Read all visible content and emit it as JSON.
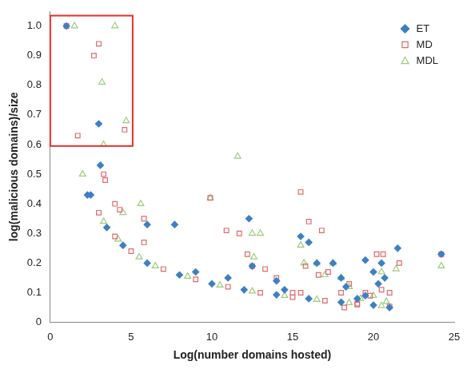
{
  "chart_data": {
    "type": "scatter",
    "x_label": "Log(number domains hosted)",
    "y_label": "log(malicious domains)/size",
    "xlim": [
      0,
      25
    ],
    "xticks": [
      0,
      5,
      10,
      15,
      20,
      25
    ],
    "ylim": [
      0,
      1.05
    ],
    "yticks": [
      0,
      0.1,
      0.2,
      0.3,
      0.4,
      0.5,
      0.6,
      0.7,
      0.8,
      0.9,
      1
    ],
    "grid": false,
    "legend": "top-right",
    "highlight": {
      "x": [
        0,
        5.1
      ],
      "y": [
        0.595,
        1.035
      ],
      "color": "#e8302a"
    },
    "series": [
      {
        "name": "ET",
        "color": "#3d7fc4",
        "marker": "diamond",
        "x": [
          1,
          3,
          3.1,
          2.3,
          6,
          7.7,
          9,
          11,
          12.3,
          12.5,
          14,
          15.5,
          16,
          17.5,
          18,
          18.3,
          19,
          19.5,
          20,
          20.3,
          20.5,
          20.7,
          21,
          21.5,
          24.2,
          19.5,
          16.5,
          14.5,
          2.5,
          3.5,
          4.5,
          6,
          8,
          10,
          12,
          14,
          16,
          18,
          20
        ],
        "values": [
          1.0,
          0.67,
          0.53,
          0.43,
          0.33,
          0.33,
          0.17,
          0.15,
          0.35,
          0.19,
          0.14,
          0.29,
          0.27,
          0.2,
          0.15,
          0.12,
          0.08,
          0.09,
          0.17,
          0.13,
          0.2,
          0.15,
          0.05,
          0.25,
          0.23,
          0.21,
          0.2,
          0.11,
          0.43,
          0.32,
          0.26,
          0.2,
          0.16,
          0.13,
          0.11,
          0.093,
          0.08,
          0.068,
          0.058
        ]
      },
      {
        "name": "MD",
        "color": "#e06a6a",
        "marker": "open_square",
        "x": [
          1,
          3,
          2.7,
          1.7,
          4.6,
          3.3,
          3.4,
          4,
          4.3,
          5.8,
          5.8,
          9.9,
          10.9,
          11.7,
          12.2,
          12.5,
          13.3,
          14,
          15.5,
          16,
          15.8,
          16.8,
          16.6,
          17.2,
          18,
          18.5,
          19.5,
          19.8,
          20.2,
          20.6,
          20.5,
          21,
          21.6,
          24.2,
          15,
          15.5,
          18.2,
          19,
          3,
          4,
          5,
          7,
          9,
          11,
          13,
          15,
          17,
          19,
          21
        ],
        "values": [
          1.0,
          0.94,
          0.9,
          0.63,
          0.65,
          0.5,
          0.48,
          0.4,
          0.38,
          0.35,
          0.27,
          0.42,
          0.31,
          0.3,
          0.23,
          0.19,
          0.18,
          0.15,
          0.44,
          0.34,
          0.19,
          0.31,
          0.16,
          0.17,
          0.1,
          0.13,
          0.1,
          0.09,
          0.23,
          0.23,
          0.11,
          0.1,
          0.2,
          0.23,
          0.1,
          0.1,
          0.05,
          0.06,
          0.37,
          0.29,
          0.24,
          0.18,
          0.145,
          0.12,
          0.1,
          0.085,
          0.073,
          0.063,
          0.054
        ]
      },
      {
        "name": "MDL",
        "color": "#9ccc7c",
        "marker": "open_triangle",
        "x": [
          1.5,
          4,
          3.2,
          4.7,
          3.3,
          2,
          4.5,
          5.6,
          9.9,
          11.6,
          12.5,
          13,
          12.6,
          15.5,
          15.7,
          17,
          17.5,
          18,
          18.5,
          19.2,
          20,
          20.5,
          20.8,
          21.4,
          24.2,
          16.5,
          3.3,
          4.2,
          5.5,
          6.5,
          8.5,
          10.5,
          12.5,
          14.5,
          16.5,
          18.5,
          20.5
        ],
        "values": [
          1.0,
          1.0,
          0.81,
          0.68,
          0.6,
          0.5,
          0.37,
          0.4,
          0.42,
          0.56,
          0.3,
          0.3,
          0.22,
          0.26,
          0.2,
          0.16,
          0.2,
          0.15,
          0.12,
          0.08,
          0.09,
          0.17,
          0.07,
          0.18,
          0.19,
          0.2,
          0.34,
          0.28,
          0.22,
          0.19,
          0.155,
          0.125,
          0.105,
          0.09,
          0.077,
          0.066,
          0.056
        ]
      }
    ]
  }
}
